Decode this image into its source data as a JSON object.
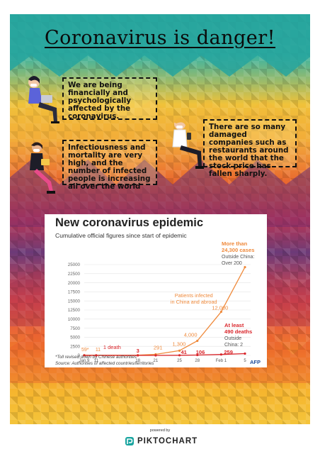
{
  "poster": {
    "title": "Coronavirus  is  danger!",
    "notes": [
      "We are being financially and psychologically affected by the coronavirus.",
      "There are so many damaged companies such as restaurants around the world that the stock price has fallen sharply.",
      "Infectiousness and mortality are very high, and the number of infected people is increasing all over the world"
    ],
    "colors": {
      "accent_cases": "#ef8a3c",
      "accent_deaths": "#d9262b",
      "teal": "#2aa9a0"
    }
  },
  "chart": {
    "title": "New coronavirus epidemic",
    "subtitle": "Cumulative official figures since start of epidemic",
    "footnote": "*Toll revised down by Chinese authorities",
    "source": "Source: Authorities of affected countries/territories",
    "logo": "AFP"
  },
  "chart_data": {
    "type": "line",
    "title": "New coronavirus epidemic",
    "subtitle": "Cumulative official figures since start of epidemic",
    "ylim": [
      0,
      25000
    ],
    "y_ticks": [
      "25000",
      "22500",
      "20000",
      "17500",
      "15000",
      "12500",
      "10000",
      "7500",
      "5000",
      "2500",
      "0"
    ],
    "x_ticks": [
      "Jan 9",
      "11",
      "18",
      "21",
      "25",
      "28",
      "Feb 1",
      "5"
    ],
    "series": [
      {
        "name": "Patients infected in China and abroad",
        "color": "#ef8a3c",
        "points": [
          [
            "Jan 9",
            59
          ],
          [
            "Jan 11",
            41
          ],
          [
            "Jan 18",
            60
          ],
          [
            "Jan 21",
            291
          ],
          [
            "Jan 25",
            1300
          ],
          [
            "Jan 28",
            4000
          ],
          [
            "Feb 1",
            12000
          ],
          [
            "Feb 5",
            24300
          ]
        ]
      },
      {
        "name": "Deaths",
        "color": "#d9262b",
        "points": [
          [
            "Jan 9",
            0
          ],
          [
            "Jan 11",
            1
          ],
          [
            "Jan 18",
            3
          ],
          [
            "Jan 21",
            6
          ],
          [
            "Jan 25",
            41
          ],
          [
            "Jan 28",
            106
          ],
          [
            "Feb 1",
            259
          ],
          [
            "Feb 5",
            490
          ]
        ]
      }
    ],
    "case_labels": [
      "59*",
      "1,300",
      "4,000",
      "12,000"
    ],
    "death_labels": [
      "1 death",
      "3",
      "41",
      "106",
      "259"
    ],
    "annotations": {
      "cases_head": "More than 24,300 cases",
      "cases_outside": "Outside China: Over 200",
      "infected_label": "Patients infected in China and abroad",
      "deaths_head": "At least 490 deaths",
      "deaths_outside": "Outside China: 2",
      "value_291": "291",
      "value_11": "11"
    }
  },
  "footer": {
    "powered_by": "powered by",
    "brand": "PIKTOCHART"
  }
}
